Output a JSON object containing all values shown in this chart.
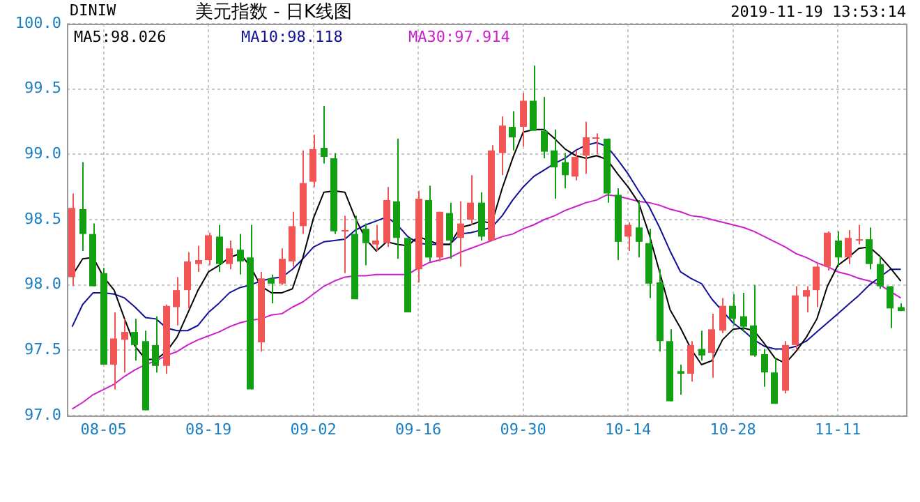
{
  "chart_data": {
    "type": "candlestick",
    "title": "美元指数 - 日K线图",
    "subtitle": "DINIW",
    "annotations": [
      "2019-11-19 13:53:14"
    ],
    "categories": [
      null,
      null,
      null,
      "08-05",
      null,
      null,
      null,
      null,
      null,
      null,
      null,
      null,
      null,
      "08-19",
      null,
      null,
      null,
      null,
      null,
      null,
      null,
      null,
      null,
      "09-02",
      null,
      null,
      null,
      null,
      null,
      null,
      null,
      null,
      null,
      "09-16",
      null,
      null,
      null,
      null,
      null,
      null,
      null,
      null,
      null,
      "09-30",
      null,
      null,
      null,
      null,
      null,
      null,
      null,
      null,
      null,
      "10-14",
      null,
      null,
      null,
      null,
      null,
      null,
      null,
      null,
      null,
      "10-28",
      null,
      null,
      null,
      null,
      null,
      null,
      null,
      null,
      null,
      "11-11",
      null,
      null,
      null,
      null,
      null,
      null
    ],
    "ohlc": [
      [
        98.06,
        98.7,
        97.99,
        98.59
      ],
      [
        98.58,
        98.94,
        98.26,
        98.39
      ],
      [
        98.39,
        98.47,
        97.99,
        97.99
      ],
      [
        98.09,
        98.13,
        97.39,
        97.39
      ],
      [
        97.39,
        97.79,
        97.2,
        97.59
      ],
      [
        97.58,
        97.74,
        97.33,
        97.64
      ],
      [
        97.64,
        97.74,
        97.42,
        97.54
      ],
      [
        97.57,
        97.65,
        97.04,
        97.04
      ],
      [
        97.54,
        97.76,
        97.33,
        97.38
      ],
      [
        97.38,
        97.85,
        97.32,
        97.84
      ],
      [
        97.83,
        98.06,
        97.69,
        97.96
      ],
      [
        97.96,
        98.25,
        97.82,
        98.18
      ],
      [
        98.16,
        98.3,
        98.1,
        98.19
      ],
      [
        98.19,
        98.4,
        98.15,
        98.38
      ],
      [
        98.37,
        98.46,
        98.1,
        98.16
      ],
      [
        98.16,
        98.34,
        98.12,
        98.28
      ],
      [
        98.27,
        98.39,
        98.08,
        98.18
      ],
      [
        98.21,
        98.46,
        97.2,
        97.2
      ],
      [
        97.56,
        98.1,
        97.49,
        98.05
      ],
      [
        98.05,
        98.08,
        97.86,
        98.01
      ],
      [
        98.01,
        98.28,
        98.0,
        98.2
      ],
      [
        98.18,
        98.56,
        98.14,
        98.45
      ],
      [
        98.45,
        99.03,
        98.39,
        98.78
      ],
      [
        98.79,
        99.15,
        98.75,
        99.04
      ],
      [
        99.05,
        99.37,
        98.93,
        98.98
      ],
      [
        98.97,
        99.01,
        98.39,
        98.41
      ],
      [
        98.41,
        98.53,
        98.09,
        98.42
      ],
      [
        98.39,
        98.53,
        97.89,
        97.89
      ],
      [
        98.43,
        98.47,
        98.15,
        98.32
      ],
      [
        98.31,
        98.46,
        98.26,
        98.34
      ],
      [
        98.32,
        98.75,
        98.29,
        98.65
      ],
      [
        98.64,
        99.12,
        98.2,
        98.36
      ],
      [
        98.36,
        98.36,
        97.79,
        97.79
      ],
      [
        98.12,
        98.72,
        98.02,
        98.66
      ],
      [
        98.65,
        98.76,
        98.18,
        98.21
      ],
      [
        98.21,
        98.56,
        98.18,
        98.56
      ],
      [
        98.55,
        98.63,
        98.2,
        98.34
      ],
      [
        98.36,
        98.64,
        98.14,
        98.47
      ],
      [
        98.5,
        98.84,
        98.46,
        98.63
      ],
      [
        98.63,
        98.71,
        98.34,
        98.37
      ],
      [
        98.34,
        99.07,
        98.34,
        99.03
      ],
      [
        99.01,
        99.29,
        98.84,
        99.22
      ],
      [
        99.21,
        99.33,
        99.03,
        99.13
      ],
      [
        99.21,
        99.47,
        99.06,
        99.41
      ],
      [
        99.41,
        99.68,
        99.18,
        99.18
      ],
      [
        99.18,
        99.44,
        98.97,
        99.02
      ],
      [
        99.03,
        99.19,
        98.66,
        98.9
      ],
      [
        98.94,
        99.01,
        98.74,
        98.84
      ],
      [
        98.83,
        99.03,
        98.8,
        98.98
      ],
      [
        98.99,
        99.25,
        98.85,
        99.13
      ],
      [
        99.12,
        99.16,
        99.0,
        99.13
      ],
      [
        99.12,
        99.12,
        98.63,
        98.7
      ],
      [
        98.69,
        98.74,
        98.19,
        98.33
      ],
      [
        98.37,
        98.48,
        98.26,
        98.46
      ],
      [
        98.44,
        98.65,
        98.21,
        98.33
      ],
      [
        98.32,
        98.43,
        97.9,
        98.01
      ],
      [
        98.02,
        98.12,
        97.49,
        97.57
      ],
      [
        97.57,
        97.66,
        97.11,
        97.11
      ],
      [
        97.34,
        97.39,
        97.16,
        97.32
      ],
      [
        97.32,
        97.57,
        97.26,
        97.54
      ],
      [
        97.51,
        97.65,
        97.42,
        97.46
      ],
      [
        97.48,
        97.78,
        97.29,
        97.66
      ],
      [
        97.65,
        97.9,
        97.63,
        97.84
      ],
      [
        97.84,
        97.93,
        97.69,
        97.74
      ],
      [
        97.76,
        97.94,
        97.64,
        97.68
      ],
      [
        97.69,
        98.0,
        97.45,
        97.46
      ],
      [
        97.47,
        97.51,
        97.22,
        97.33
      ],
      [
        97.33,
        97.44,
        97.09,
        97.09
      ],
      [
        97.19,
        97.57,
        97.17,
        97.54
      ],
      [
        97.54,
        97.99,
        97.5,
        97.92
      ],
      [
        97.91,
        97.99,
        97.79,
        97.96
      ],
      [
        97.96,
        98.16,
        97.83,
        98.14
      ],
      [
        98.14,
        98.41,
        98.11,
        98.4
      ],
      [
        98.34,
        98.41,
        98.14,
        98.21
      ],
      [
        98.21,
        98.42,
        98.16,
        98.36
      ],
      [
        98.34,
        98.46,
        98.31,
        98.35
      ],
      [
        98.35,
        98.44,
        98.12,
        98.16
      ],
      [
        98.16,
        98.22,
        97.97,
        97.99
      ],
      [
        97.99,
        97.99,
        97.67,
        97.82
      ],
      [
        97.83,
        97.86,
        97.8,
        97.8
      ]
    ],
    "colors": [
      "#f25555",
      "#12a012",
      "#12a012",
      "#12a012",
      "#f25555",
      "#f25555",
      "#12a012",
      "#12a012",
      "#12a012",
      "#f25555",
      "#f25555",
      "#f25555",
      "#f25555",
      "#f25555",
      "#12a012",
      "#f25555",
      "#12a012",
      "#12a012",
      "#f25555",
      "#12a012",
      "#f25555",
      "#f25555",
      "#f25555",
      "#f25555",
      "#12a012",
      "#12a012",
      "#f25555",
      "#12a012",
      "#12a012",
      "#f25555",
      "#f25555",
      "#12a012",
      "#12a012",
      "#f25555",
      "#12a012",
      "#f25555",
      "#12a012",
      "#f25555",
      "#f25555",
      "#12a012",
      "#f25555",
      "#f25555",
      "#12a012",
      "#f25555",
      "#12a012",
      "#12a012",
      "#12a012",
      "#12a012",
      "#f25555",
      "#f25555",
      "#f25555",
      "#12a012",
      "#12a012",
      "#f25555",
      "#12a012",
      "#12a012",
      "#12a012",
      "#12a012",
      "#12a012",
      "#f25555",
      "#12a012",
      "#f25555",
      "#f25555",
      "#12a012",
      "#12a012",
      "#12a012",
      "#12a012",
      "#12a012",
      "#f25555",
      "#f25555",
      "#f25555",
      "#f25555",
      "#f25555",
      "#12a012",
      "#f25555",
      "#f25555",
      "#12a012",
      "#12a012",
      "#12a012",
      "#12a012"
    ],
    "series": [
      {
        "type": "line",
        "name": "MA5:98.026",
        "color": "#000000",
        "values": [
          98.07,
          98.2,
          98.21,
          98.06,
          97.96,
          97.74,
          97.53,
          97.43,
          97.43,
          97.49,
          97.6,
          97.78,
          97.96,
          98.1,
          98.15,
          98.21,
          98.24,
          98.14,
          97.99,
          97.94,
          97.94,
          97.97,
          98.21,
          98.51,
          98.71,
          98.72,
          98.71,
          98.51,
          98.35,
          98.26,
          98.33,
          98.31,
          98.3,
          98.37,
          98.34,
          98.31,
          98.31,
          98.44,
          98.46,
          98.49,
          98.47,
          98.74,
          98.97,
          99.17,
          99.19,
          99.19,
          99.12,
          99.04,
          98.99,
          98.97,
          98.99,
          98.96,
          98.85,
          98.75,
          98.63,
          98.39,
          98.1,
          97.81,
          97.67,
          97.51,
          97.39,
          97.42,
          97.58,
          97.66,
          97.67,
          97.65,
          97.55,
          97.44,
          97.4,
          97.49,
          97.6,
          97.74,
          97.99,
          98.15,
          98.21,
          98.28,
          98.29,
          98.22,
          98.13,
          98.03
        ]
      },
      {
        "type": "line",
        "name": "MA10:98.118",
        "color": "#10109a",
        "values": [
          97.68,
          97.85,
          97.94,
          97.94,
          97.93,
          97.9,
          97.83,
          97.75,
          97.74,
          97.67,
          97.65,
          97.65,
          97.69,
          97.79,
          97.86,
          97.94,
          97.98,
          98.0,
          98.03,
          98.05,
          98.06,
          98.12,
          98.2,
          98.29,
          98.33,
          98.34,
          98.35,
          98.42,
          98.46,
          98.49,
          98.52,
          98.46,
          98.37,
          98.32,
          98.31,
          98.31,
          98.31,
          98.39,
          98.4,
          98.42,
          98.44,
          98.53,
          98.65,
          98.75,
          98.83,
          98.88,
          98.93,
          98.97,
          99.03,
          99.07,
          99.09,
          99.06,
          98.96,
          98.85,
          98.72,
          98.6,
          98.44,
          98.26,
          98.1,
          98.05,
          98.01,
          97.89,
          97.8,
          97.71,
          97.65,
          97.58,
          97.53,
          97.51,
          97.51,
          97.53,
          97.57,
          97.64,
          97.71,
          97.78,
          97.85,
          97.92,
          98.0,
          98.06,
          98.12,
          98.12
        ]
      },
      {
        "type": "line",
        "name": "MA30:97.914",
        "color": "#cc1fcc",
        "values": [
          97.05,
          97.1,
          97.16,
          97.2,
          97.24,
          97.3,
          97.35,
          97.39,
          97.42,
          97.46,
          97.49,
          97.54,
          97.58,
          97.61,
          97.64,
          97.68,
          97.71,
          97.73,
          97.74,
          97.77,
          97.78,
          97.83,
          97.87,
          97.93,
          97.99,
          98.03,
          98.06,
          98.07,
          98.07,
          98.08,
          98.08,
          98.08,
          98.08,
          98.13,
          98.17,
          98.19,
          98.21,
          98.25,
          98.28,
          98.31,
          98.34,
          98.37,
          98.39,
          98.43,
          98.46,
          98.5,
          98.53,
          98.57,
          98.6,
          98.63,
          98.65,
          98.69,
          98.68,
          98.66,
          98.64,
          98.63,
          98.61,
          98.58,
          98.56,
          98.53,
          98.52,
          98.5,
          98.48,
          98.46,
          98.44,
          98.41,
          98.37,
          98.33,
          98.29,
          98.24,
          98.21,
          98.17,
          98.14,
          98.1,
          98.08,
          98.05,
          98.03,
          98.0,
          97.95,
          97.9
        ]
      }
    ],
    "ylim": [
      97,
      100
    ],
    "yticks": [
      {
        "value": 97,
        "label": "97.0"
      },
      {
        "value": 97.5,
        "label": "97.5"
      },
      {
        "value": 98,
        "label": "98.0"
      },
      {
        "value": 98.5,
        "label": "98.5"
      },
      {
        "value": 99,
        "label": "99.0"
      },
      {
        "value": 99.5,
        "label": "99.5"
      },
      {
        "value": 100,
        "label": "100.0"
      }
    ],
    "grid": true,
    "legend": "top left"
  }
}
